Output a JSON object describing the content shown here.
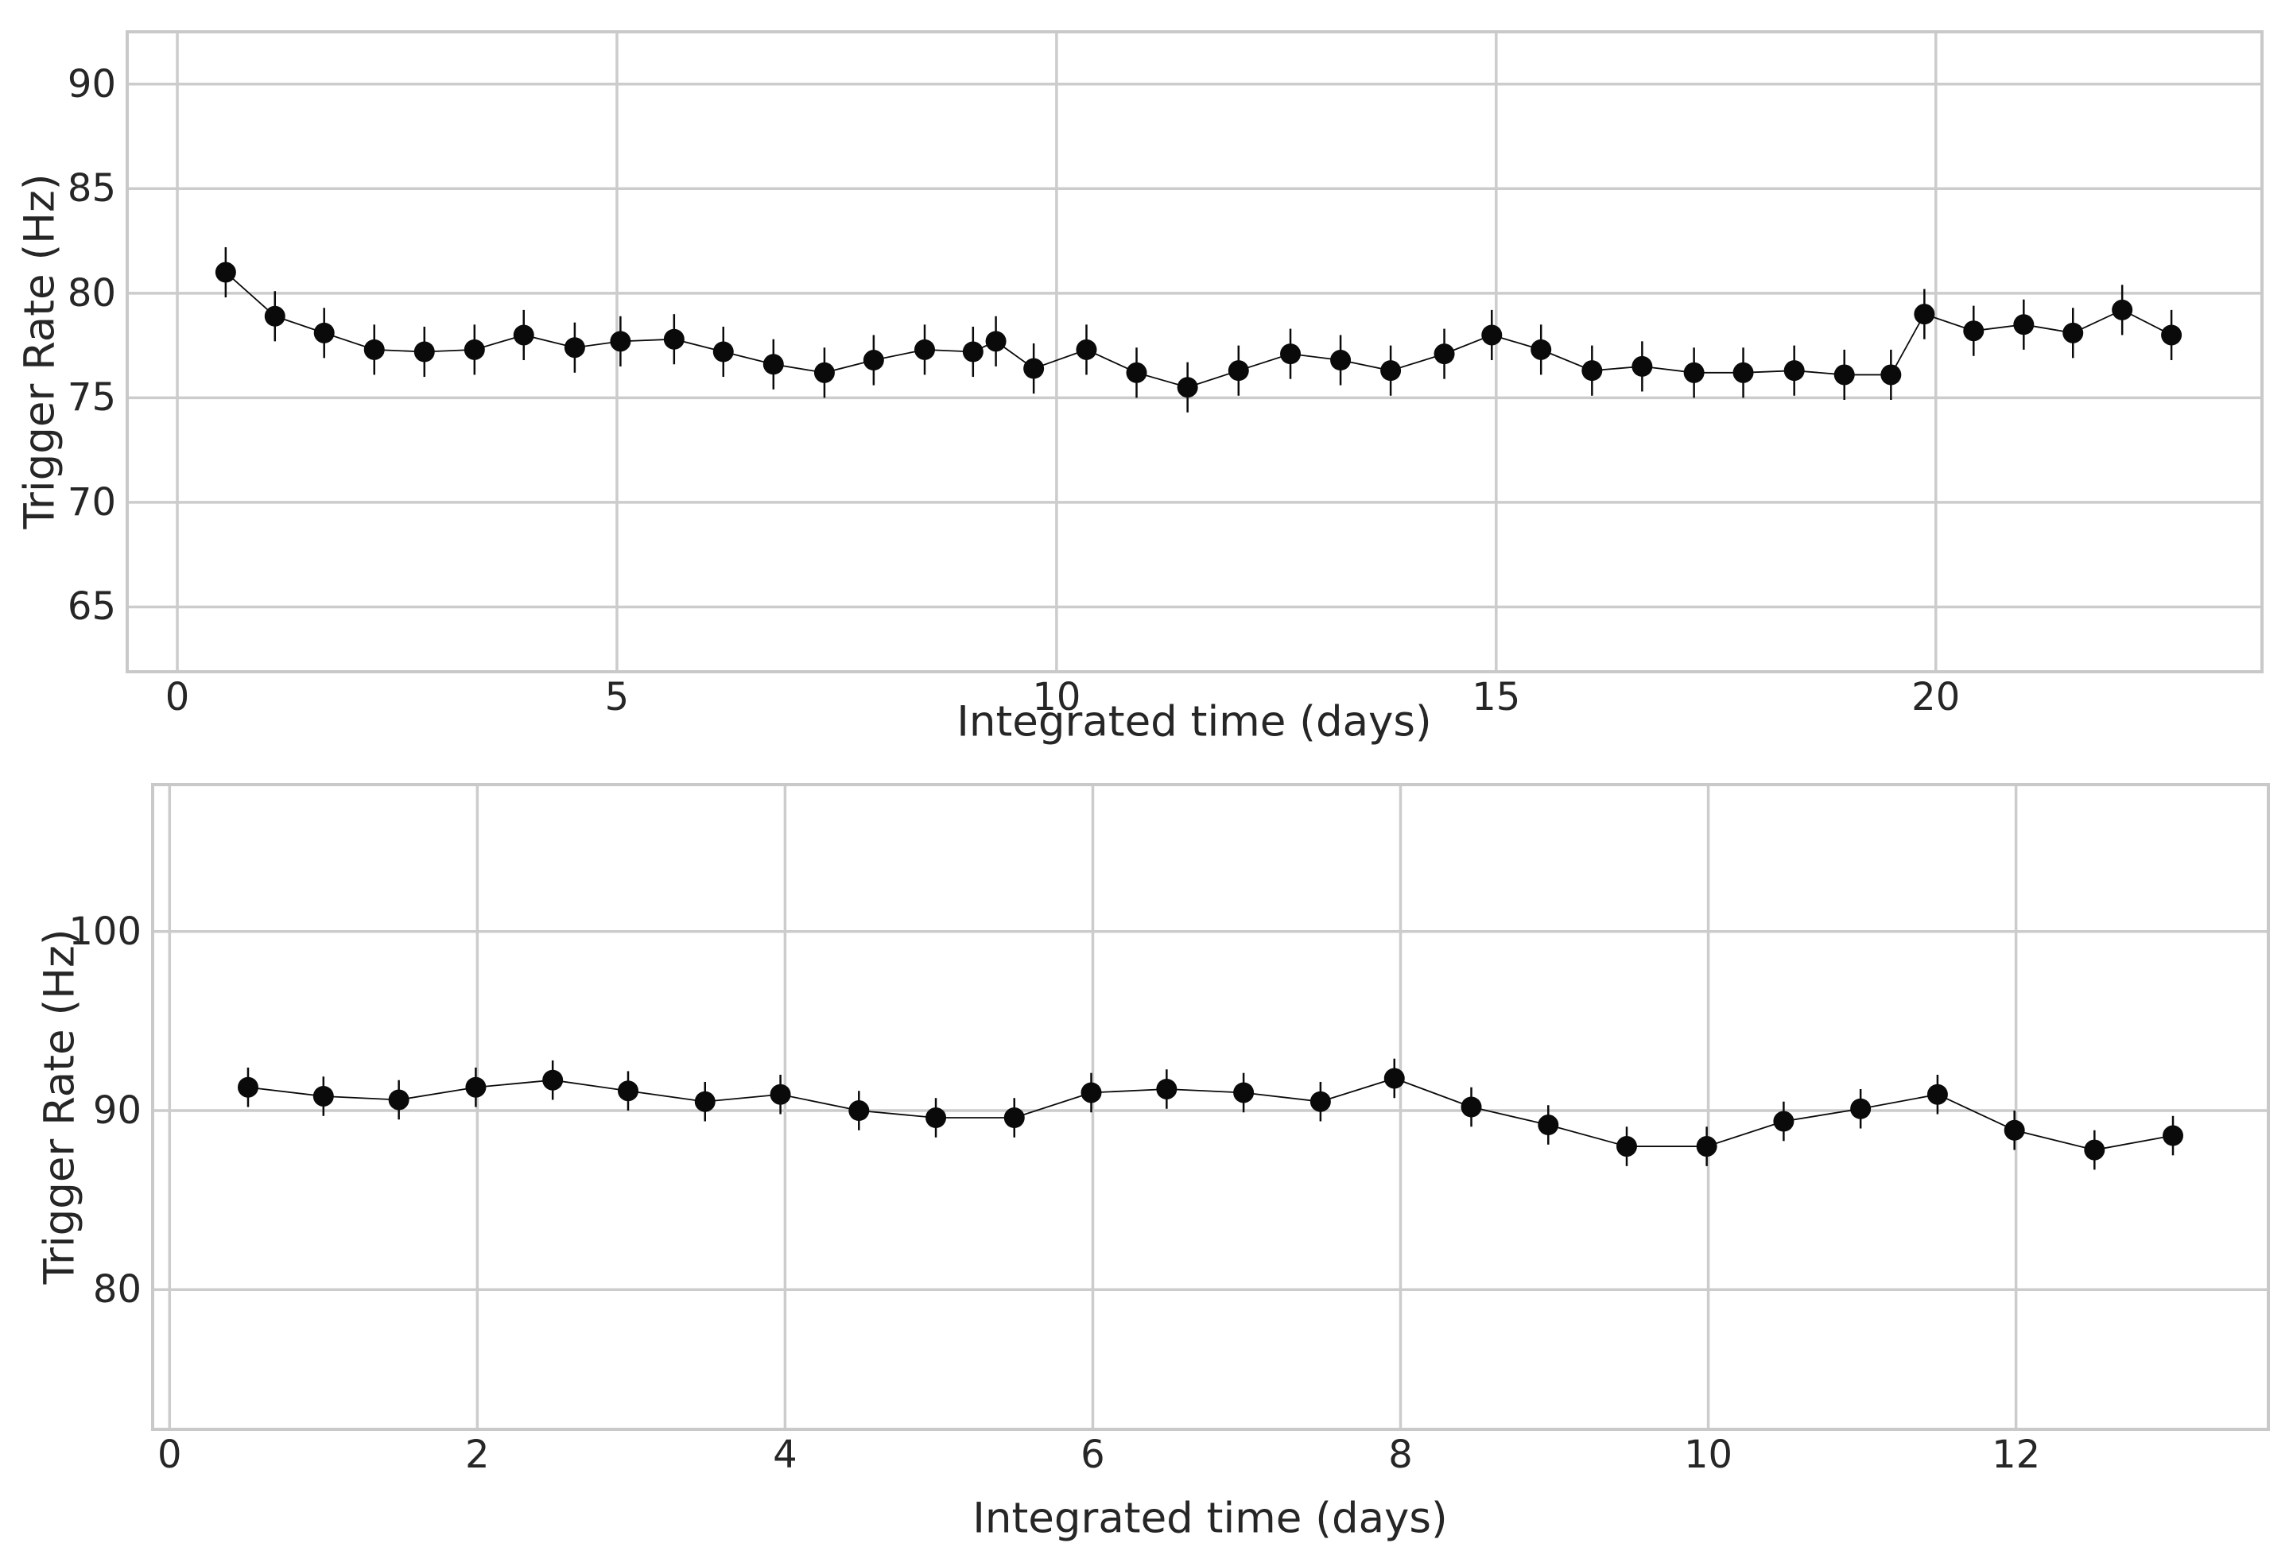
{
  "figure": {
    "background": "#ffffff",
    "text_color": "#262626",
    "grid_color": "#cccccc",
    "spine_color": "#c9c9c9",
    "marker_color": "#0a0a0a"
  },
  "chart_data": [
    {
      "type": "scatter",
      "title": "",
      "xlabel": "Integrated time (days)",
      "ylabel": "Trigger Rate (Hz)",
      "xlim": [
        -0.57,
        23.71
      ],
      "ylim": [
        61.9,
        92.5
      ],
      "xticks": [
        0,
        5,
        10,
        15,
        20
      ],
      "yticks": [
        65,
        70,
        75,
        80,
        85,
        90
      ],
      "grid": true,
      "legend": "none",
      "marker": "circle",
      "line": "solid",
      "yerr": 1.2,
      "x": [
        0.55,
        1.11,
        1.67,
        2.24,
        2.81,
        3.38,
        3.94,
        4.52,
        5.04,
        5.65,
        6.21,
        6.78,
        7.36,
        7.92,
        8.5,
        9.05,
        9.31,
        9.74,
        10.34,
        10.91,
        11.49,
        12.07,
        12.66,
        13.23,
        13.8,
        14.41,
        14.95,
        15.51,
        16.09,
        16.66,
        17.25,
        17.81,
        18.39,
        18.96,
        19.49,
        19.87,
        20.43,
        21.0,
        21.56,
        22.12,
        22.68
      ],
      "y": [
        81.0,
        78.9,
        78.1,
        77.3,
        77.2,
        77.3,
        78.0,
        77.4,
        77.7,
        77.8,
        77.2,
        76.6,
        76.2,
        76.8,
        77.3,
        77.2,
        77.7,
        76.4,
        77.3,
        76.2,
        75.5,
        76.3,
        77.1,
        76.8,
        76.3,
        77.1,
        78.0,
        77.3,
        76.3,
        76.5,
        76.2,
        76.2,
        76.3,
        76.1,
        76.1,
        79.0,
        78.2,
        78.5,
        78.1,
        79.2,
        78.0
      ]
    },
    {
      "type": "scatter",
      "title": "",
      "xlabel": "Integrated time (days)",
      "ylabel": "Trigger Rate (Hz)",
      "xlim": [
        -0.11,
        13.64
      ],
      "ylim": [
        72.2,
        108.2
      ],
      "xticks": [
        0,
        2,
        4,
        6,
        8,
        10,
        12
      ],
      "yticks": [
        80,
        90,
        100
      ],
      "grid": true,
      "legend": "none",
      "marker": "circle",
      "line": "solid",
      "yerr": 1.1,
      "x": [
        0.51,
        1.0,
        1.49,
        1.99,
        2.49,
        2.98,
        3.48,
        3.97,
        4.48,
        4.98,
        5.49,
        5.99,
        6.48,
        6.98,
        7.48,
        7.96,
        8.46,
        8.96,
        9.47,
        9.99,
        10.49,
        10.99,
        11.49,
        11.99,
        12.51,
        13.02
      ],
      "y": [
        91.3,
        90.8,
        90.6,
        91.3,
        91.7,
        91.1,
        90.5,
        90.9,
        90.0,
        89.6,
        89.6,
        91.0,
        91.2,
        91.0,
        90.5,
        91.8,
        90.2,
        89.2,
        88.0,
        88.0,
        89.4,
        90.1,
        90.9,
        88.9,
        87.8,
        88.6
      ]
    }
  ]
}
